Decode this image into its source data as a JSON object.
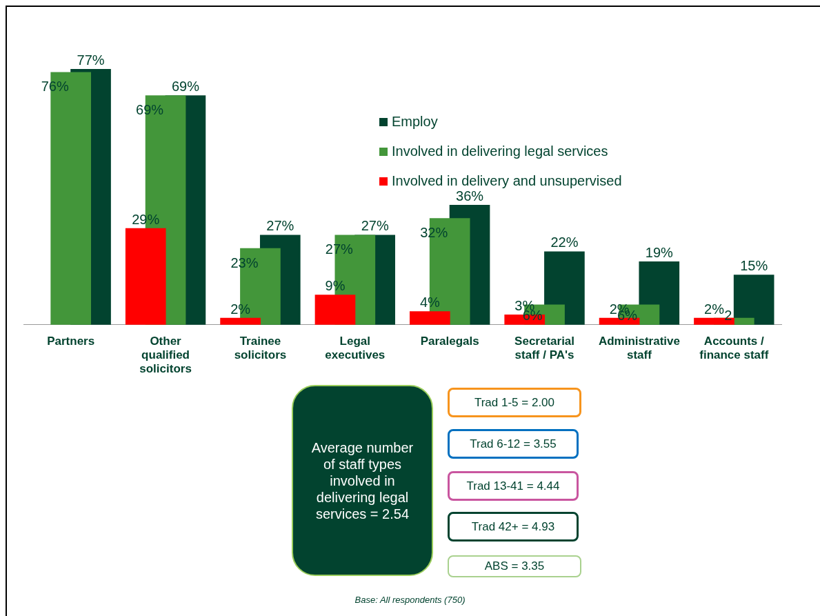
{
  "chart_data": {
    "type": "bar",
    "categories": [
      "Partners",
      "Other qualified solicitors",
      "Trainee solicitors",
      "Legal executives",
      "Paralegals",
      "Secretarial staff / PA's",
      "Administrative staff",
      "Accounts / finance staff"
    ],
    "series": [
      {
        "name": "Employ",
        "color": "#02432f",
        "values": [
          77,
          69,
          27,
          27,
          36,
          22,
          19,
          15
        ],
        "value_labels": [
          "77%",
          "69%",
          "27%",
          "27%",
          "36%",
          "22%",
          "19%",
          "15%"
        ]
      },
      {
        "name": "Involved in delivering legal services",
        "color": "#43963a",
        "values": [
          76,
          69,
          23,
          27,
          32,
          6,
          6,
          2
        ],
        "value_labels": [
          "76%",
          "69%",
          "23%",
          "27%",
          "32%",
          "6%",
          "6%",
          "2"
        ]
      },
      {
        "name": "Involved in delivery and unsupervised",
        "color": "#ff0000",
        "values": [
          null,
          29,
          2,
          9,
          4,
          3,
          2,
          2
        ],
        "value_labels": [
          null,
          "29%",
          "2%",
          "9%",
          "4%",
          "3%",
          "2%",
          "2%"
        ]
      }
    ],
    "tick_labels": "x",
    "legend": "top right",
    "grid": false,
    "annotations": [
      "Average number of staff types involved in delivering legal services = 2.54",
      "Trad 1-5 = 2.00",
      "Trad 6-12 = 3.55",
      "Trad 13-41 = 4.44",
      "Trad 42+ = 4.93",
      "ABS = 3.35",
      "Base: All  respondents (750)"
    ]
  }
}
